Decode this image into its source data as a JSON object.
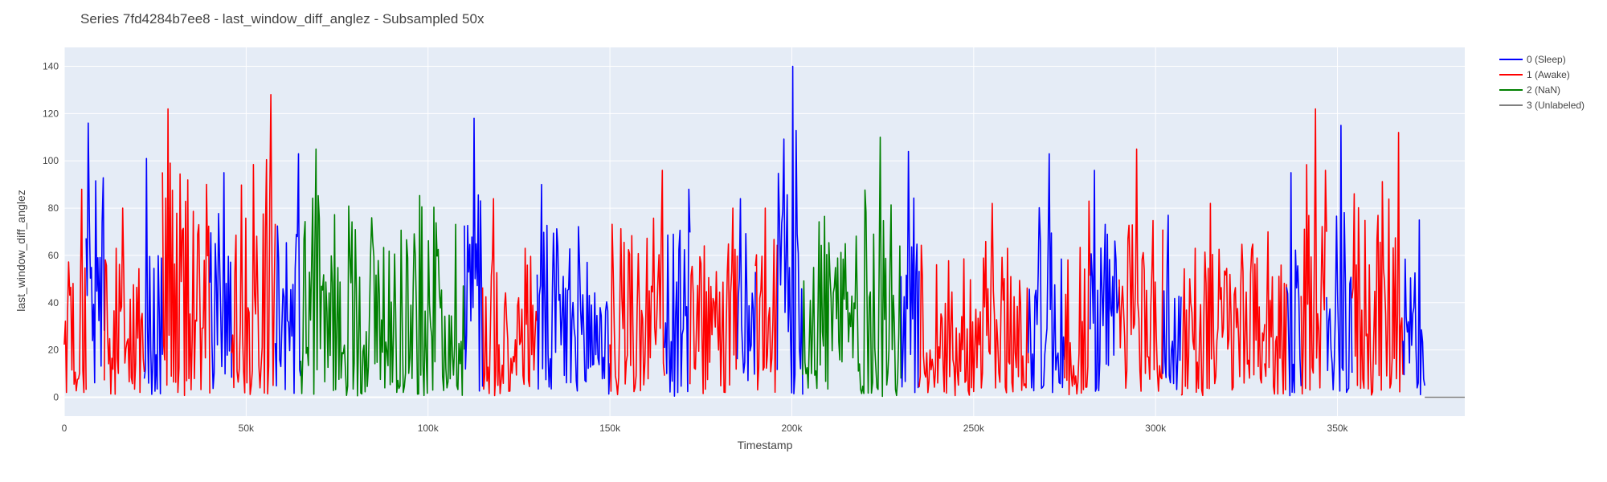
{
  "chart_data": {
    "type": "line",
    "title": "Series 7fd4284b7ee8 - last_window_diff_anglez - Subsampled 50x",
    "xlabel": "Timestamp",
    "ylabel": "last_window_diff_anglez",
    "xlim": [
      0,
      385000
    ],
    "ylim": [
      -8,
      148
    ],
    "x_ticks": [
      0,
      50000,
      100000,
      150000,
      200000,
      250000,
      300000,
      350000
    ],
    "x_tick_labels": [
      "0",
      "50k",
      "100k",
      "150k",
      "200k",
      "250k",
      "300k",
      "350k"
    ],
    "y_ticks": [
      0,
      20,
      40,
      60,
      80,
      100,
      120,
      140
    ],
    "y_tick_labels": [
      "0",
      "20",
      "40",
      "60",
      "80",
      "100",
      "120",
      "140"
    ],
    "grid": true,
    "legend_position": "top-right outside",
    "series": [
      {
        "name": "0 (Sleep)",
        "color": "#0000ff"
      },
      {
        "name": "1 (Awake)",
        "color": "#ff0000"
      },
      {
        "name": "2 (NaN)",
        "color": "#008000"
      },
      {
        "name": "3 (Unlabeled)",
        "color": "#808080"
      }
    ],
    "segments": [
      {
        "label": 1,
        "x": [
          0,
          6000
        ],
        "peak": 88
      },
      {
        "label": 0,
        "x": [
          6000,
          11000
        ],
        "peak": 116
      },
      {
        "label": 1,
        "x": [
          11000,
          22000
        ],
        "peak": 80
      },
      {
        "label": 0,
        "x": [
          22000,
          27000
        ],
        "peak": 101
      },
      {
        "label": 1,
        "x": [
          27000,
          40000
        ],
        "peak": 122
      },
      {
        "label": 0,
        "x": [
          40000,
          46000
        ],
        "peak": 95
      },
      {
        "label": 1,
        "x": [
          46000,
          58000
        ],
        "peak": 128
      },
      {
        "label": 0,
        "x": [
          58000,
          65000
        ],
        "peak": 103
      },
      {
        "label": 2,
        "x": [
          65000,
          110000
        ],
        "peak": 105
      },
      {
        "label": 0,
        "x": [
          110000,
          115000
        ],
        "peak": 118
      },
      {
        "label": 1,
        "x": [
          115000,
          130000
        ],
        "peak": 84
      },
      {
        "label": 0,
        "x": [
          130000,
          150000
        ],
        "peak": 90
      },
      {
        "label": 1,
        "x": [
          150000,
          165000
        ],
        "peak": 96
      },
      {
        "label": 0,
        "x": [
          165000,
          172000
        ],
        "peak": 88
      },
      {
        "label": 1,
        "x": [
          172000,
          185000
        ],
        "peak": 80
      },
      {
        "label": 0,
        "x": [
          185000,
          190000
        ],
        "peak": 84
      },
      {
        "label": 1,
        "x": [
          190000,
          196000
        ],
        "peak": 80
      },
      {
        "label": 0,
        "x": [
          196000,
          203000
        ],
        "peak": 140
      },
      {
        "label": 2,
        "x": [
          203000,
          230000
        ],
        "peak": 110
      },
      {
        "label": 0,
        "x": [
          230000,
          235000
        ],
        "peak": 104
      },
      {
        "label": 1,
        "x": [
          235000,
          265000
        ],
        "peak": 82
      },
      {
        "label": 0,
        "x": [
          265000,
          275000
        ],
        "peak": 103
      },
      {
        "label": 1,
        "x": [
          275000,
          282000
        ],
        "peak": 83
      },
      {
        "label": 0,
        "x": [
          282000,
          290000
        ],
        "peak": 96
      },
      {
        "label": 1,
        "x": [
          290000,
          302000
        ],
        "peak": 105
      },
      {
        "label": 0,
        "x": [
          302000,
          307000
        ],
        "peak": 77
      },
      {
        "label": 1,
        "x": [
          307000,
          330000
        ],
        "peak": 82
      },
      {
        "label": 1,
        "x": [
          330000,
          336000
        ],
        "peak": 70
      },
      {
        "label": 0,
        "x": [
          336000,
          340000
        ],
        "peak": 95
      },
      {
        "label": 1,
        "x": [
          340000,
          347000
        ],
        "peak": 122
      },
      {
        "label": 0,
        "x": [
          347000,
          354000
        ],
        "peak": 115
      },
      {
        "label": 1,
        "x": [
          354000,
          368000
        ],
        "peak": 112
      },
      {
        "label": 0,
        "x": [
          368000,
          374000
        ],
        "peak": 75
      },
      {
        "label": 3,
        "x": [
          374000,
          385000
        ],
        "peak": 0
      }
    ]
  }
}
